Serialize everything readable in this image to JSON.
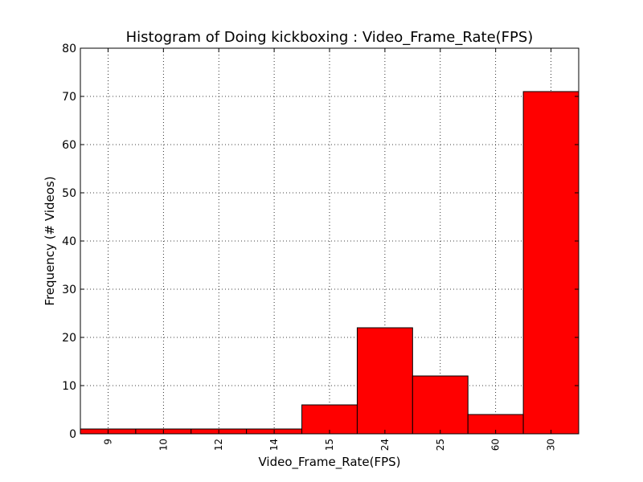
{
  "chart_data": {
    "type": "bar",
    "title": "Histogram of Doing kickboxing : Video_Frame_Rate(FPS)",
    "xlabel": "Video_Frame_Rate(FPS)",
    "ylabel": "Frequency (# Videos)",
    "categories": [
      "9",
      "10",
      "12",
      "14",
      "15",
      "24",
      "25",
      "60",
      "30"
    ],
    "values": [
      1,
      1,
      1,
      1,
      6,
      22,
      12,
      4,
      71
    ],
    "ylim": [
      0,
      80
    ],
    "yticks": [
      "0",
      "10",
      "20",
      "30",
      "40",
      "50",
      "60",
      "70",
      "80"
    ],
    "grid": true,
    "bar_color": "#ff0000",
    "edge_color": "#000000"
  }
}
